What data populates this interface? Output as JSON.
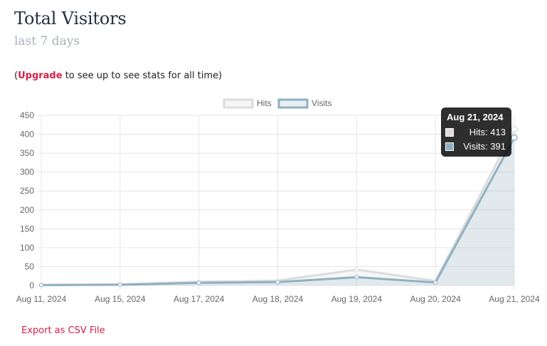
{
  "header": {
    "title": "Total Visitors",
    "subtitle": "last 7 days"
  },
  "notice": {
    "open": "(",
    "link": "Upgrade",
    "rest": " to see up to see stats for all time)"
  },
  "export_label": "Export as CSV File",
  "tooltip": {
    "title": "Aug 21, 2024",
    "rows": [
      {
        "label": "Hits: 413",
        "color": "#dcdcdc"
      },
      {
        "label": "Visits: 391",
        "color": "#8fb0c3"
      }
    ]
  },
  "chart_data": {
    "type": "area",
    "title": "",
    "xlabel": "",
    "ylabel": "",
    "categories": [
      "Aug 11, 2024",
      "Aug 15, 2024",
      "Aug 17, 2024",
      "Aug 18, 2024",
      "Aug 19, 2024",
      "Aug 20, 2024",
      "Aug 21, 2024"
    ],
    "ylim": [
      0,
      450
    ],
    "yticks": [
      0,
      50,
      100,
      150,
      200,
      250,
      300,
      350,
      400,
      450
    ],
    "grid": true,
    "legend": "top-center",
    "series": [
      {
        "name": "Hits",
        "values": [
          2,
          3,
          10,
          13,
          42,
          12,
          413
        ],
        "color": "#dcdcdc",
        "fill": "rgba(220,220,220,0.25)"
      },
      {
        "name": "Visits",
        "values": [
          1,
          2,
          7,
          9,
          22,
          8,
          391
        ],
        "color": "#8fb0c3",
        "fill": "rgba(151,187,205,0.22)"
      }
    ]
  }
}
